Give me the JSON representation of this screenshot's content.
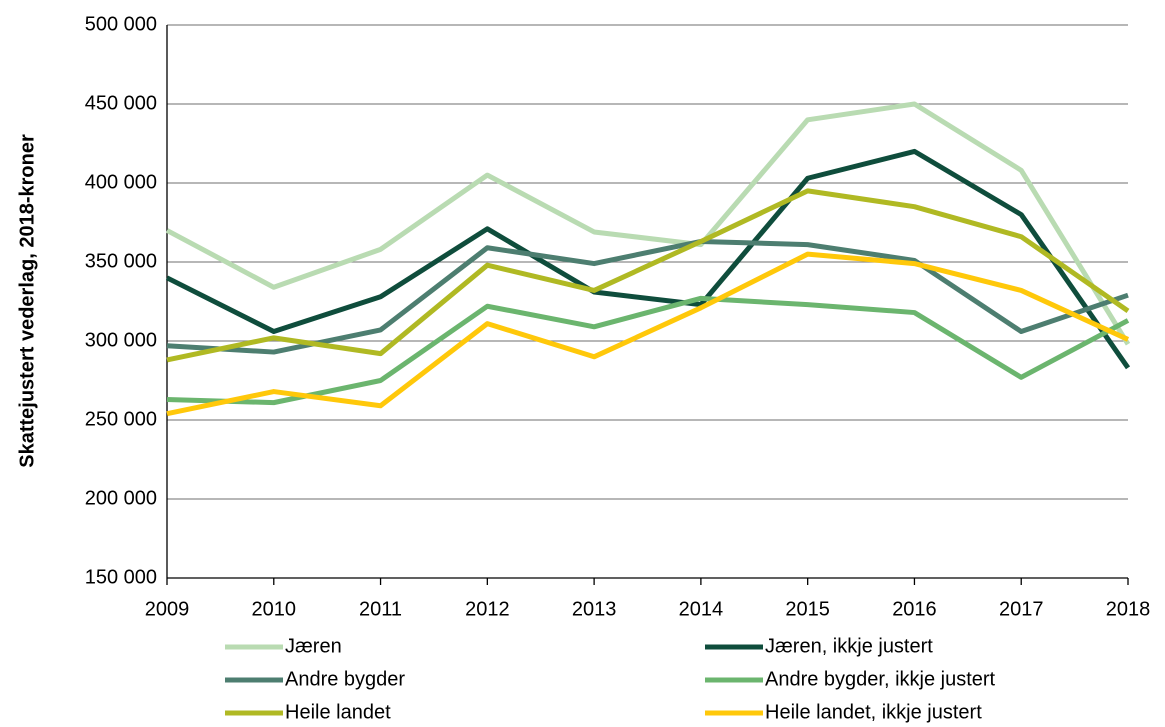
{
  "chart_data": {
    "type": "line",
    "y_label": "Skattejustert vederlag, 2018-kroner",
    "x": [
      2009,
      2010,
      2011,
      2012,
      2013,
      2014,
      2015,
      2016,
      2017,
      2018
    ],
    "xlim": [
      2009,
      2018
    ],
    "xticks": [
      2009,
      2010,
      2011,
      2012,
      2013,
      2014,
      2015,
      2016,
      2017,
      2018
    ],
    "ylim": [
      150000,
      500000
    ],
    "yticks": [
      {
        "value": 150000,
        "label": "150 000"
      },
      {
        "value": 200000,
        "label": "200 000"
      },
      {
        "value": 250000,
        "label": "250 000"
      },
      {
        "value": 300000,
        "label": "300 000"
      },
      {
        "value": 350000,
        "label": "350 000"
      },
      {
        "value": 400000,
        "label": "400 000"
      },
      {
        "value": 450000,
        "label": "450 000"
      },
      {
        "value": 500000,
        "label": "500 000"
      }
    ],
    "grid": true,
    "legend": "bottom",
    "series": [
      {
        "name": "Jæren",
        "color": "#b9dbb2",
        "values": [
          370000,
          334000,
          358000,
          405000,
          369000,
          361000,
          440000,
          450000,
          408000,
          298000
        ]
      },
      {
        "name": "Jæren, ikkje justert",
        "color": "#0f4d3c",
        "values": [
          340000,
          306000,
          328000,
          371000,
          331000,
          323000,
          403000,
          420000,
          380000,
          283000
        ]
      },
      {
        "name": "Andre bygder",
        "color": "#4d7e70",
        "values": [
          297000,
          293000,
          307000,
          359000,
          349000,
          363000,
          361000,
          351000,
          306000,
          329000
        ]
      },
      {
        "name": "Andre bygder, ikkje justert",
        "color": "#6bb56e",
        "values": [
          263000,
          261000,
          275000,
          322000,
          309000,
          327000,
          323000,
          318000,
          277000,
          313000
        ]
      },
      {
        "name": "Heile landet",
        "color": "#b0b923",
        "values": [
          288000,
          302000,
          292000,
          348000,
          332000,
          363000,
          395000,
          385000,
          366000,
          319000
        ]
      },
      {
        "name": "Heile landet, ikkje justert",
        "color": "#ffc80a",
        "values": [
          254000,
          268000,
          259000,
          311000,
          290000,
          321000,
          355000,
          349000,
          332000,
          301000
        ]
      }
    ]
  }
}
